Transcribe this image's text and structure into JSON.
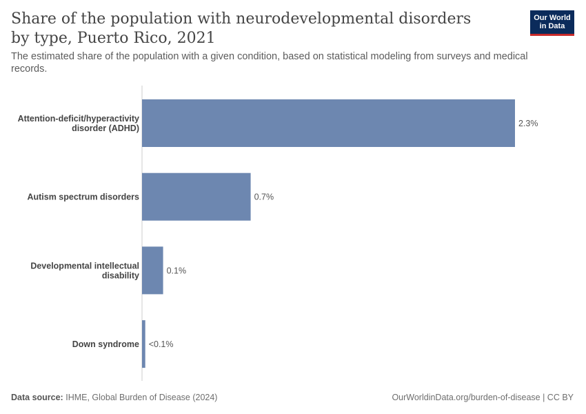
{
  "header": {
    "title": "Share of the population with neurodevelopmental disorders by type, Puerto Rico, 2021",
    "subtitle": "The estimated share of the population with a given condition, based on statistical modeling from surveys and medical records."
  },
  "logo": {
    "line1": "Our World",
    "line2": "in Data"
  },
  "footer": {
    "source_label": "Data source:",
    "source_text": "IHME, Global Burden of Disease (2024)",
    "credit": "OurWorldinData.org/burden-of-disease | CC BY"
  },
  "colors": {
    "bar": "#6d87b0",
    "axis": "#cccccc"
  },
  "chart_data": {
    "type": "bar",
    "orientation": "horizontal",
    "title": "Share of the population with neurodevelopmental disorders by type, Puerto Rico, 2021",
    "xlabel": "",
    "ylabel": "",
    "unit": "%",
    "xlim": [
      0,
      2.3
    ],
    "categories": [
      [
        "Attention-deficit/hyperactivity",
        "disorder (ADHD)"
      ],
      [
        "Autism spectrum disorders"
      ],
      [
        "Developmental intellectual",
        "disability"
      ],
      [
        "Down syndrome"
      ]
    ],
    "values": [
      2.3,
      0.67,
      0.13,
      0.02
    ],
    "data_labels": [
      "2.3%",
      "0.7%",
      "0.1%",
      "<0.1%"
    ]
  }
}
